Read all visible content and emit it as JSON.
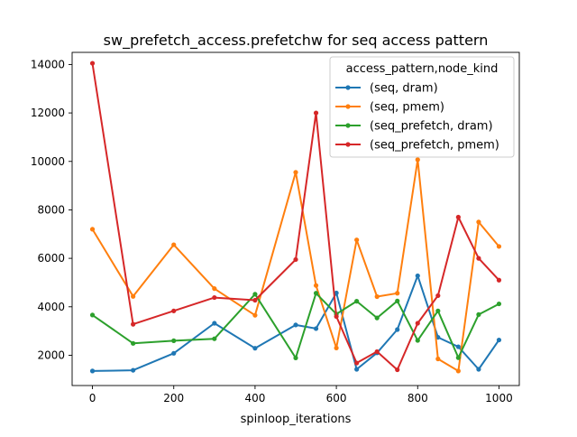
{
  "chart_data": {
    "type": "line",
    "title": "sw_prefetch_access.prefetchw for seq access pattern",
    "xlabel": "spinloop_iterations",
    "ylabel": "",
    "xlim": [
      -50,
      1050
    ],
    "ylim": [
      750,
      14500
    ],
    "x_ticks": [
      0,
      200,
      400,
      600,
      800,
      1000
    ],
    "y_ticks": [
      2000,
      4000,
      6000,
      8000,
      10000,
      12000,
      14000
    ],
    "grid": false,
    "legend_title": "access_pattern,node_kind",
    "legend_position": "upper right",
    "series": [
      {
        "name": "(seq, dram)",
        "color": "#1f77b4",
        "x": [
          0,
          100,
          200,
          300,
          400,
          500,
          550,
          600,
          650,
          700,
          750,
          800,
          850,
          900,
          950,
          1000
        ],
        "y": [
          1350,
          1380,
          2080,
          3320,
          2290,
          3250,
          3100,
          4570,
          1420,
          2100,
          3060,
          5280,
          2740,
          2350,
          1420,
          2630
        ]
      },
      {
        "name": "(seq, pmem)",
        "color": "#ff7f0e",
        "x": [
          0,
          100,
          200,
          300,
          400,
          500,
          550,
          600,
          650,
          700,
          750,
          800,
          850,
          900,
          950,
          1000
        ],
        "y": [
          7200,
          4430,
          6560,
          4750,
          3650,
          9550,
          4880,
          2300,
          6760,
          4420,
          4560,
          10070,
          1850,
          1350,
          7500,
          6490
        ]
      },
      {
        "name": "(seq_prefetch, dram)",
        "color": "#2ca02c",
        "x": [
          0,
          100,
          200,
          300,
          400,
          500,
          550,
          600,
          650,
          700,
          750,
          800,
          850,
          900,
          950,
          1000
        ],
        "y": [
          3660,
          2490,
          2600,
          2680,
          4520,
          1890,
          4560,
          3700,
          4230,
          3540,
          4240,
          2610,
          3830,
          1900,
          3680,
          4120
        ]
      },
      {
        "name": "(seq_prefetch, pmem)",
        "color": "#d62728",
        "x": [
          0,
          100,
          200,
          300,
          400,
          500,
          550,
          600,
          650,
          700,
          750,
          800,
          850,
          900,
          950,
          1000
        ],
        "y": [
          14050,
          3280,
          3830,
          4380,
          4270,
          5950,
          12000,
          3600,
          1680,
          2150,
          1400,
          3320,
          4460,
          7700,
          6000,
          5100
        ]
      }
    ]
  }
}
